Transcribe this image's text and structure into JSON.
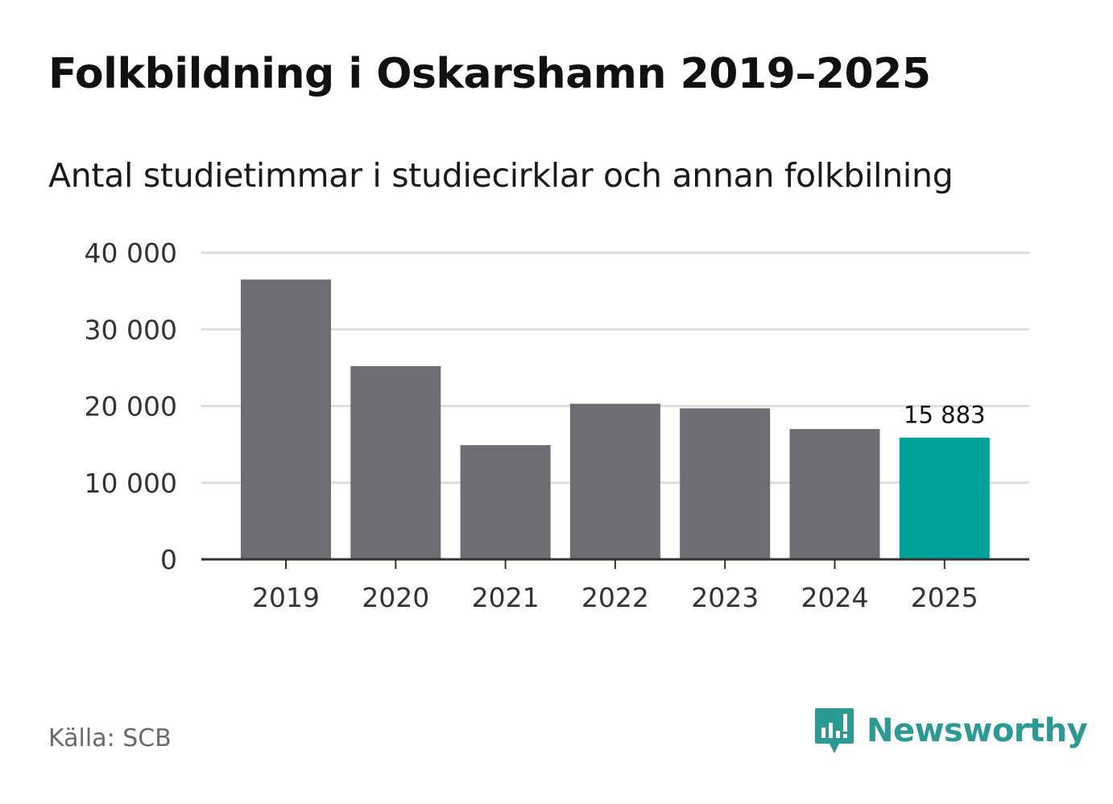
{
  "title": "Folkbildning i Oskarshamn 2019–2025",
  "subtitle": "Antal studietimmar i studiecirklar och annan folkbilning",
  "source": "Källa: SCB",
  "brand": "Newsworthy",
  "colors": {
    "bar": "#6e6d73",
    "highlight": "#00a399",
    "grid": "#dddddd",
    "axis": "#333333"
  },
  "chart_data": {
    "type": "bar",
    "title": "Folkbildning i Oskarshamn 2019–2025",
    "xlabel": "",
    "ylabel": "",
    "categories": [
      "2019",
      "2020",
      "2021",
      "2022",
      "2023",
      "2024",
      "2025"
    ],
    "values": [
      36500,
      25200,
      14900,
      20300,
      19700,
      17000,
      15883
    ],
    "highlight_index": 6,
    "data_labels": [
      {
        "index": 6,
        "text": "15 883"
      }
    ],
    "ylim": [
      0,
      40000
    ],
    "yticks": [
      0,
      10000,
      20000,
      30000,
      40000
    ],
    "ytick_labels": [
      "0",
      "10 000",
      "20 000",
      "30 000",
      "40 000"
    ],
    "grid": true
  }
}
